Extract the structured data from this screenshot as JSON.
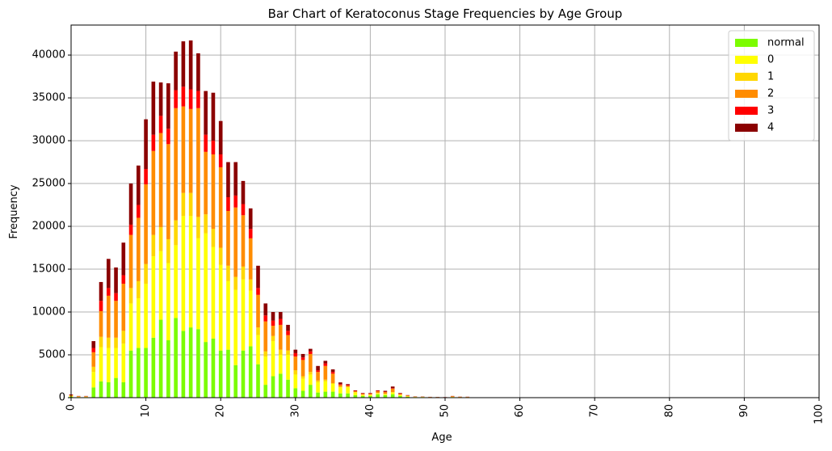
{
  "chart_data": {
    "type": "bar",
    "stacked": true,
    "title": "Bar Chart of Keratoconus Stage Frequencies by Age Group",
    "xlabel": "Age",
    "ylabel": "Frequency",
    "xlim": [
      0,
      100
    ],
    "ylim": [
      0,
      43500
    ],
    "x_ticks": [
      0,
      10,
      20,
      30,
      40,
      50,
      60,
      70,
      80,
      90,
      100
    ],
    "y_ticks": [
      0,
      5000,
      10000,
      15000,
      20000,
      25000,
      30000,
      35000,
      40000
    ],
    "grid": true,
    "legend_position": "top-right",
    "x": [
      0,
      1,
      2,
      3,
      4,
      5,
      6,
      7,
      8,
      9,
      10,
      11,
      12,
      13,
      14,
      15,
      16,
      17,
      18,
      19,
      20,
      21,
      22,
      23,
      24,
      25,
      26,
      27,
      28,
      29,
      30,
      31,
      32,
      33,
      34,
      35,
      36,
      37,
      38,
      39,
      40,
      41,
      42,
      43,
      44,
      45,
      46,
      47,
      48,
      49,
      50,
      51,
      52,
      53
    ],
    "series": [
      {
        "name": "normal",
        "color": "#7cfc00",
        "values": [
          100,
          50,
          50,
          1200,
          1900,
          1800,
          2300,
          1800,
          5500,
          5800,
          5800,
          7000,
          9100,
          6700,
          9300,
          7800,
          8200,
          8000,
          6500,
          6900,
          5500,
          5600,
          3800,
          5500,
          6000,
          3900,
          1500,
          2500,
          2800,
          2100,
          1100,
          800,
          1500,
          600,
          700,
          700,
          500,
          500,
          300,
          200,
          200,
          400,
          300,
          400,
          200,
          100,
          50,
          50,
          30,
          30,
          20,
          50,
          30,
          30
        ]
      },
      {
        "name": "0",
        "color": "#ffff00",
        "values": [
          50,
          30,
          30,
          1800,
          4000,
          4000,
          3500,
          4500,
          5500,
          5800,
          7500,
          9500,
          8000,
          9000,
          8500,
          13400,
          13000,
          10600,
          12700,
          10700,
          10000,
          8000,
          8800,
          8300,
          6500,
          3400,
          3300,
          4100,
          2200,
          2900,
          1600,
          1400,
          1200,
          1200,
          1200,
          900,
          700,
          700,
          300,
          100,
          100,
          100,
          100,
          200,
          100,
          50,
          30,
          30,
          20,
          20,
          10,
          30,
          20,
          20
        ]
      },
      {
        "name": "1",
        "color": "#ffd700",
        "values": [
          50,
          30,
          30,
          600,
          1200,
          1200,
          1200,
          1500,
          1800,
          2000,
          2300,
          2500,
          2800,
          2800,
          2900,
          2700,
          2700,
          2500,
          2200,
          2100,
          2000,
          1800,
          1500,
          1500,
          1300,
          900,
          600,
          600,
          600,
          500,
          500,
          300,
          300,
          200,
          200,
          100,
          80,
          80,
          50,
          50,
          50,
          50,
          50,
          50,
          40,
          20,
          10,
          10,
          10,
          10,
          10,
          20,
          10,
          10
        ]
      },
      {
        "name": "2",
        "color": "#ff8c00",
        "values": [
          100,
          50,
          50,
          1700,
          3000,
          4900,
          4300,
          5500,
          6200,
          7400,
          9300,
          9800,
          11000,
          11100,
          13100,
          10100,
          9800,
          12700,
          7300,
          8700,
          9400,
          6400,
          8100,
          6000,
          4800,
          3800,
          3500,
          1200,
          2900,
          1800,
          1600,
          1900,
          2100,
          1000,
          1600,
          1100,
          200,
          100,
          100,
          100,
          100,
          200,
          200,
          400,
          100,
          80,
          30,
          20,
          20,
          10,
          10,
          60,
          40,
          30
        ]
      },
      {
        "name": "3",
        "color": "#ff0000",
        "values": [
          30,
          20,
          20,
          500,
          1200,
          900,
          900,
          1000,
          1200,
          1500,
          1800,
          1900,
          2000,
          1800,
          2100,
          2300,
          2300,
          2000,
          2000,
          1600,
          1500,
          1600,
          1400,
          1300,
          1100,
          800,
          700,
          600,
          700,
          500,
          400,
          300,
          300,
          200,
          300,
          200,
          100,
          100,
          50,
          50,
          50,
          50,
          50,
          50,
          50,
          20,
          10,
          10,
          10,
          10,
          10,
          20,
          10,
          10
        ]
      },
      {
        "name": "4",
        "color": "#8b0000",
        "values": [
          50,
          20,
          20,
          800,
          2200,
          3400,
          3000,
          3800,
          4800,
          4600,
          5800,
          6200,
          3900,
          5300,
          4500,
          5300,
          5700,
          4400,
          5100,
          5600,
          3900,
          4100,
          3900,
          2700,
          2400,
          2600,
          1400,
          1000,
          800,
          700,
          400,
          400,
          300,
          500,
          300,
          300,
          200,
          100,
          50,
          50,
          50,
          50,
          100,
          200,
          60,
          30,
          20,
          20,
          10,
          10,
          10,
          20,
          10,
          10
        ]
      }
    ]
  }
}
